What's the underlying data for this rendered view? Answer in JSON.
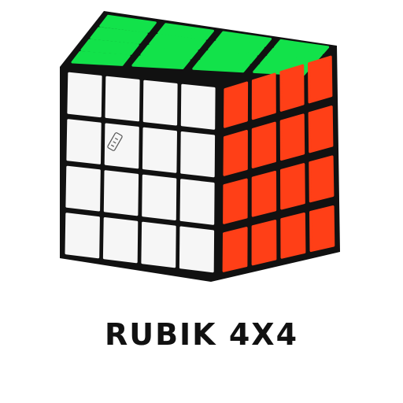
{
  "caption": "RUBIK 4X4",
  "cube": {
    "size": 4,
    "faces": {
      "top": "green",
      "front": "white",
      "right": "red"
    },
    "logo": "center-cap-logo",
    "colors": {
      "body": "#111111",
      "green": "#12e24a",
      "white": "#f6f6f6",
      "red": "#ff3f17"
    }
  }
}
